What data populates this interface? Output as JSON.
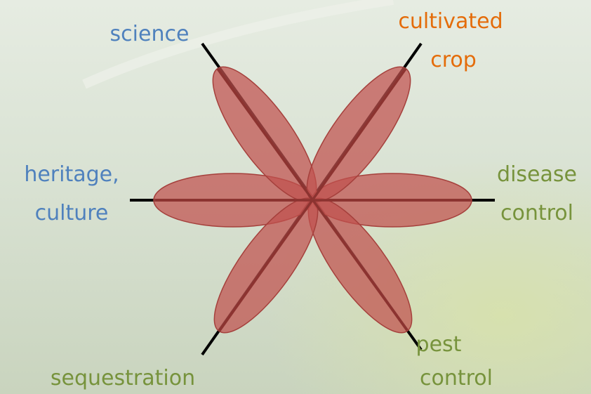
{
  "nodes": [
    {
      "lines": [
        "science"
      ]
    },
    {
      "lines": [
        "cultivated",
        "crop"
      ]
    },
    {
      "lines": [
        "heritage,",
        "culture"
      ]
    },
    {
      "lines": [
        "disease",
        "control"
      ]
    },
    {
      "lines": [
        "sequestration"
      ]
    },
    {
      "lines": [
        "pest",
        "control"
      ]
    }
  ]
}
